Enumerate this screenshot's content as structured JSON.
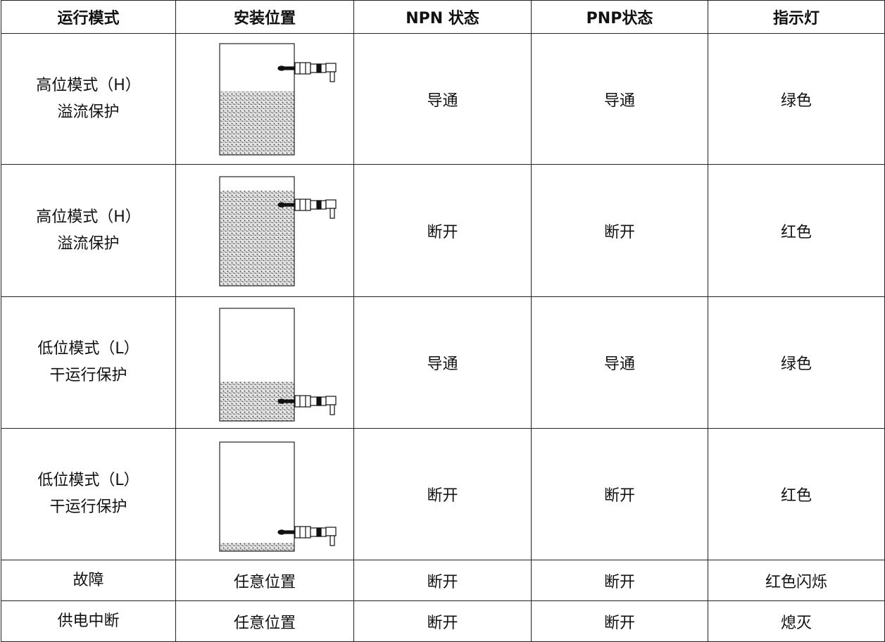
{
  "table": {
    "header": [
      "运行模式",
      "安装位置",
      "NPN 状态",
      "PNP状态",
      "指示灯"
    ],
    "rows": [
      {
        "mode": [
          "高位模式（H）",
          "溢流保护"
        ],
        "npn": "导通",
        "pnp": "导通",
        "light": "绿色"
      },
      {
        "mode": [
          "高位模式（H）",
          "溢流保护"
        ],
        "npn": "断开",
        "pnp": "断开",
        "light": "红色"
      },
      {
        "mode": [
          "低位模式（L）",
          "干运行保护"
        ],
        "npn": "导通",
        "pnp": "导通",
        "light": "绿色"
      },
      {
        "mode": [
          "低位模式（L）",
          "干运行保护"
        ],
        "npn": "断开",
        "pnp": "断开",
        "light": "红色"
      },
      {
        "mode": [
          "故障"
        ],
        "position": "任意位置",
        "npn": "断开",
        "pnp": "断开",
        "light": "红色闪烁"
      },
      {
        "mode": [
          "供电中断"
        ],
        "position": "任意位置",
        "npn": "断开",
        "pnp": "断开",
        "light": "熄灭"
      }
    ]
  }
}
